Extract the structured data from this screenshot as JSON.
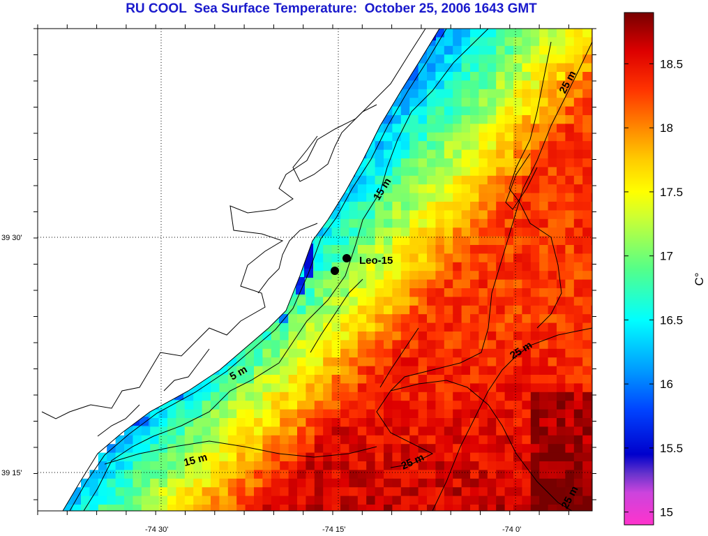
{
  "title": "RU COOL  Sea Surface Temperature:  October 25, 2006 1643 GMT",
  "colorbar": {
    "unit": "C°",
    "ticks": [
      "18.5",
      "18",
      "17.5",
      "17",
      "16.5",
      "16",
      "15.5",
      "15"
    ],
    "stops": [
      {
        "value": 14.9,
        "color": "#ff33cc"
      },
      {
        "value": 15.15,
        "color": "#cc44dd"
      },
      {
        "value": 15.3,
        "color": "#6633cc"
      },
      {
        "value": 15.45,
        "color": "#0000cc"
      },
      {
        "value": 15.8,
        "color": "#0044ff"
      },
      {
        "value": 16.1,
        "color": "#0099ff"
      },
      {
        "value": 16.5,
        "color": "#00ffff"
      },
      {
        "value": 16.9,
        "color": "#55ff88"
      },
      {
        "value": 17.3,
        "color": "#ccff33"
      },
      {
        "value": 17.5,
        "color": "#ffff00"
      },
      {
        "value": 17.75,
        "color": "#ffcc00"
      },
      {
        "value": 18.0,
        "color": "#ff8800"
      },
      {
        "value": 18.3,
        "color": "#ff3300"
      },
      {
        "value": 18.6,
        "color": "#dd0000"
      },
      {
        "value": 18.9,
        "color": "#770000"
      }
    ],
    "min": 14.9,
    "max": 18.9
  },
  "axes": {
    "y_labels": [
      "39 30'",
      "39 15'"
    ],
    "x_labels": [
      "-74 30'",
      "-74 15'",
      "-74 0'"
    ]
  },
  "depth_contours": [
    "25 m",
    "15 m",
    "5 m",
    "25 m",
    "15 m",
    "25 m",
    "25 m"
  ],
  "stations": [
    {
      "name": "Leo-15"
    }
  ],
  "colors": {
    "land": "#ffffff",
    "title": "#1a1acc"
  }
}
